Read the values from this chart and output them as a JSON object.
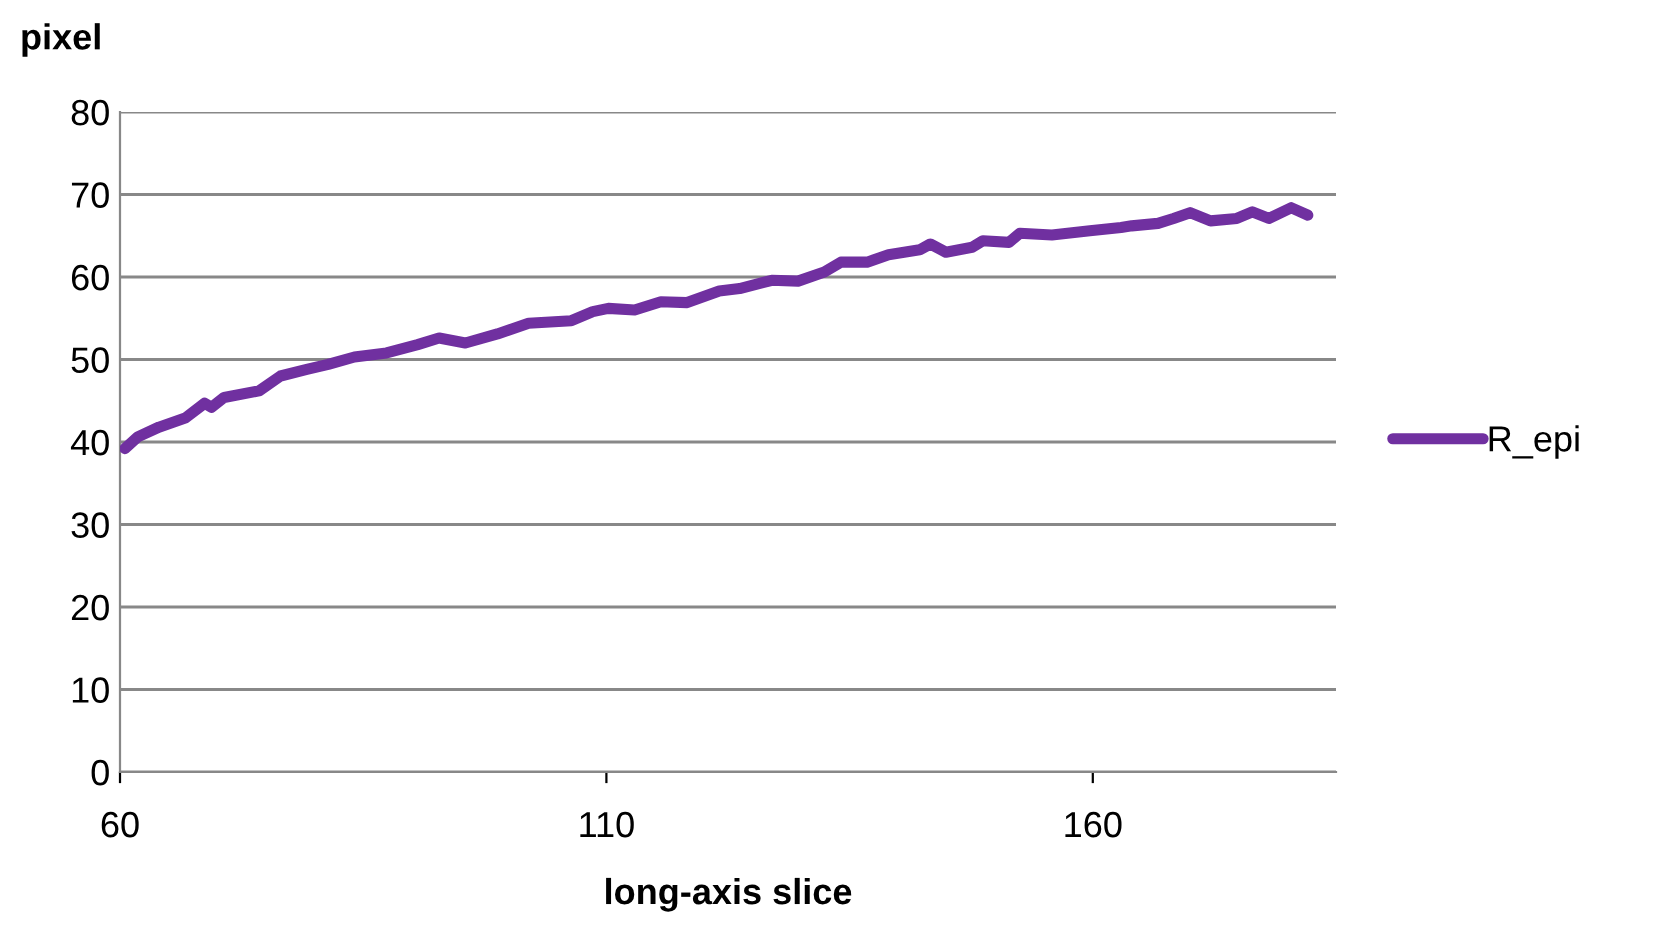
{
  "chart_data": {
    "type": "line",
    "ylabel": "pixel",
    "xlabel": "long-axis slice",
    "xlim": [
      60,
      185
    ],
    "xticks": [
      60,
      110,
      160
    ],
    "ylim": [
      0,
      80
    ],
    "yticks": [
      0,
      10,
      20,
      30,
      40,
      50,
      60,
      70,
      80
    ],
    "grid": "y",
    "legend": "right",
    "marker": "none",
    "line_style": "solid",
    "series": [
      {
        "name": "R_epi",
        "color": "#7030a0",
        "x": [
          60.5,
          61.8,
          64,
          66.7,
          68.7,
          69.4,
          70.7,
          74.3,
          76.5,
          79.2,
          81.4,
          84.1,
          87.4,
          90.6,
          92.8,
          95.5,
          98.8,
          102,
          106.4,
          108.6,
          110.2,
          112.9,
          115.6,
          118.3,
          121.6,
          123.7,
          127,
          129.7,
          132.4,
          134.1,
          136.8,
          139,
          142.2,
          143.3,
          144.9,
          147.6,
          148.7,
          151.4,
          152.5,
          155.8,
          159.7,
          162.9,
          164,
          166.7,
          168.3,
          170,
          172.1,
          174.8,
          176.4,
          178.1,
          180.4,
          182.1
        ],
        "values": [
          39.2,
          40.6,
          41.8,
          42.9,
          44.7,
          44.2,
          45.4,
          46.2,
          48.0,
          48.8,
          49.4,
          50.3,
          50.8,
          51.8,
          52.6,
          52.0,
          53.1,
          54.4,
          54.7,
          55.8,
          56.2,
          56.0,
          57.0,
          56.9,
          58.3,
          58.6,
          59.6,
          59.5,
          60.6,
          61.8,
          61.8,
          62.7,
          63.3,
          64.0,
          63.0,
          63.6,
          64.4,
          64.2,
          65.3,
          65.1,
          65.6,
          66.0,
          66.2,
          66.5,
          67.1,
          67.8,
          66.8,
          67.1,
          67.9,
          67.1,
          68.4,
          67.5
        ]
      }
    ]
  }
}
